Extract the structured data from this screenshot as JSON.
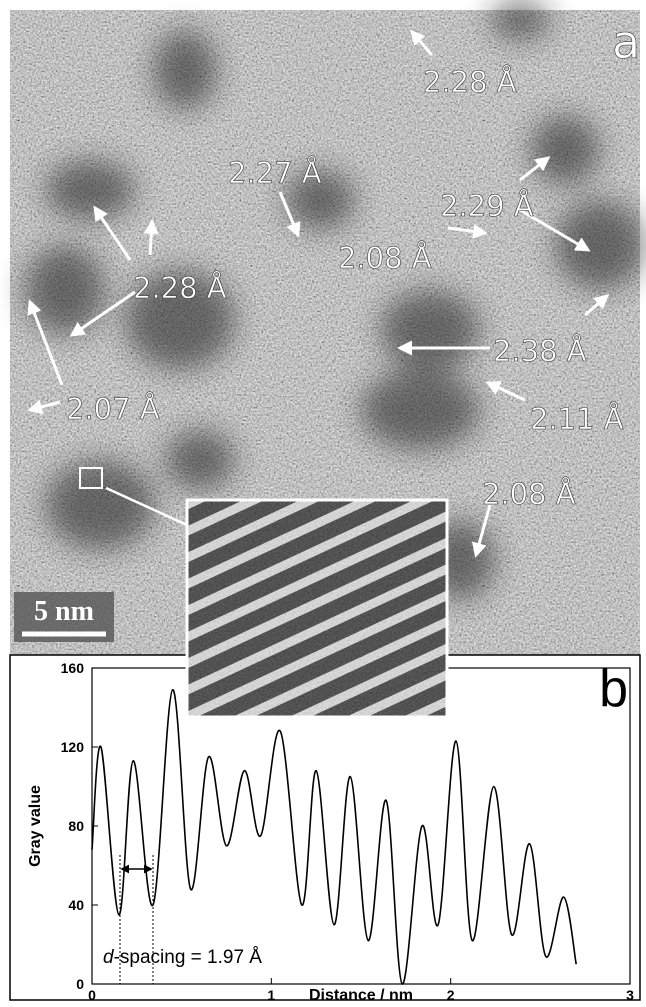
{
  "panel_a": {
    "label": "a",
    "scale_bar": "5 nm",
    "annotations": [
      "2.28 Å",
      "2.27 Å",
      "2.29 Å",
      "2.08 Å",
      "2.28 Å",
      "2.38 Å",
      "2.07 Å",
      "2.11 Å",
      "2.08 Å"
    ]
  },
  "chart_data": {
    "type": "line",
    "panel_label": "b",
    "xlabel": "Distance / nm",
    "ylabel": "Gray value",
    "annotation": "d-spacing = 1.97 Å",
    "x": [
      0.0,
      0.05,
      0.15,
      0.23,
      0.34,
      0.45,
      0.55,
      0.65,
      0.75,
      0.85,
      0.94,
      1.05,
      1.17,
      1.25,
      1.35,
      1.44,
      1.54,
      1.64,
      1.73,
      1.84,
      1.93,
      2.03,
      2.12,
      2.24,
      2.34,
      2.44,
      2.53,
      2.63,
      2.7
    ],
    "values": [
      68,
      120,
      35,
      113,
      40,
      149,
      48,
      115,
      70,
      108,
      75,
      128,
      40,
      108,
      30,
      105,
      22,
      93,
      0,
      80,
      30,
      123,
      22,
      100,
      25,
      71,
      14,
      44,
      10
    ],
    "color": "#000000",
    "xlim": [
      0,
      3
    ],
    "ylim": [
      0,
      160
    ],
    "xticks": [
      0,
      1,
      2,
      3
    ],
    "yticks": [
      0,
      40,
      80,
      120,
      160
    ]
  }
}
